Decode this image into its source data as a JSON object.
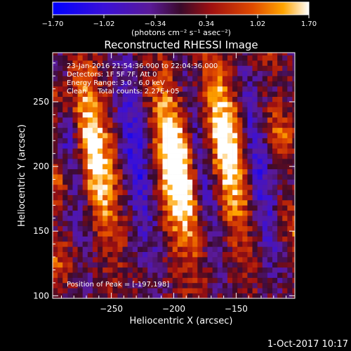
{
  "chart_data": {
    "type": "heatmap",
    "title": "Reconstructed RHESSI Image",
    "xlabel": "Heliocentric X (arcsec)",
    "ylabel": "Heliocentric Y (arcsec)",
    "xlim": [
      -297,
      -103
    ],
    "ylim": [
      98,
      288
    ],
    "xticks": [
      -250,
      -200,
      -150
    ],
    "xtick_labels": [
      "−250",
      "−200",
      "−150"
    ],
    "yticks": [
      100,
      150,
      200,
      250
    ],
    "ytick_labels": [
      "100",
      "150",
      "200",
      "250"
    ],
    "colorbar": {
      "min": -1.7,
      "max": 1.7,
      "ticks": [
        -1.7,
        -1.02,
        -0.34,
        0.34,
        1.02,
        1.7
      ],
      "tick_labels": [
        "−1.70",
        "−1.02",
        "−0.34",
        "0.34",
        "1.02",
        "1.70"
      ],
      "units_label": "(photons cm⁻² s⁻¹ asec⁻²)"
    },
    "peak_arcsec": [
      -197,
      198
    ],
    "bright_lobes": [
      {
        "x": -265,
        "y": 210
      },
      {
        "x": -197,
        "y": 198
      },
      {
        "x": -157,
        "y": 215
      }
    ],
    "dark_lobes": [
      {
        "x": -280,
        "y": 210
      },
      {
        "x": -230,
        "y": 205
      },
      {
        "x": -178,
        "y": 200
      },
      {
        "x": -133,
        "y": 200
      }
    ],
    "grid": false
  },
  "annotations": [
    "23-Jan-2016 21:54:36.000 to 22:04:36.000",
    "Detectors: 1F 5F 7F, Att 0",
    "Energy Range: 3.0 - 6.0 keV",
    "Clean     Total counts: 2.27E+05"
  ],
  "peak_label": "Position of Peak = [-197,198]",
  "timestamp": "1-Oct-2017 10:17"
}
